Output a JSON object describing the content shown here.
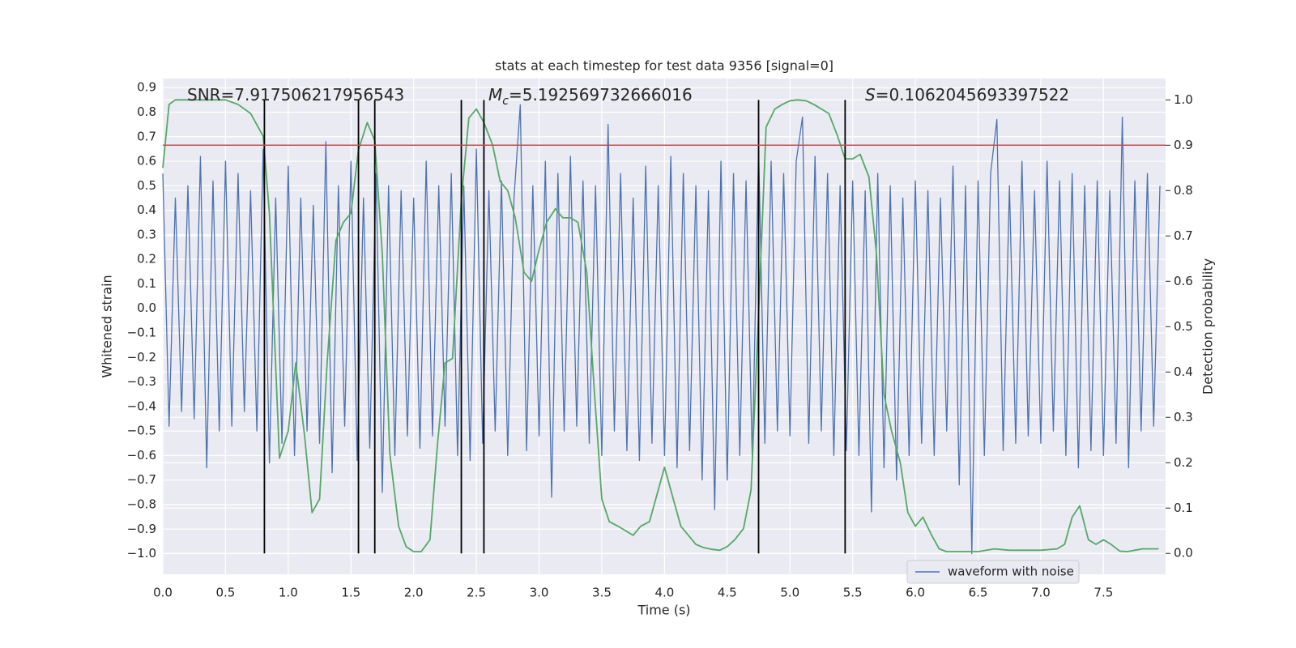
{
  "chart_data": {
    "type": "line",
    "title": "stats at each timestep for test data 9356 [signal=0]",
    "x_label": "Time (s)",
    "y_label": "Whitened strain",
    "y2_label": "Detection probability",
    "annotations": [
      [
        "SNR=7.917506217956543"
      ],
      [
        "M",
        "c",
        "=5.192569732666016"
      ],
      [
        "S",
        "=0.1062045693397522"
      ]
    ],
    "xlim": [
      0,
      7.995
    ],
    "ylim": [
      -1.084,
      0.937
    ],
    "y2lim": [
      -0.046,
      1.047
    ],
    "xticks": [
      {
        "value": 0,
        "label": "0.0"
      },
      0.5,
      {
        "value": 1,
        "label": "1.0"
      },
      1.5,
      {
        "value": 2,
        "label": "2.0"
      },
      2.5,
      {
        "value": 3,
        "label": "3.0"
      },
      3.5,
      {
        "value": 4,
        "label": "4.0"
      },
      4.5,
      {
        "value": 5,
        "label": "5.0"
      },
      5.5,
      {
        "value": 6,
        "label": "6.0"
      },
      6.5,
      {
        "value": 7,
        "label": "7.0"
      },
      7.5
    ],
    "yticks": [
      {
        "value": -1,
        "label": "−1.0"
      },
      {
        "value": -0.9,
        "label": "−0.9"
      },
      {
        "value": -0.8,
        "label": "−0.8"
      },
      {
        "value": -0.7,
        "label": "−0.7"
      },
      {
        "value": -0.6,
        "label": "−0.6"
      },
      {
        "value": -0.5,
        "label": "−0.5"
      },
      {
        "value": -0.4,
        "label": "−0.4"
      },
      {
        "value": -0.3,
        "label": "−0.3"
      },
      {
        "value": -0.2,
        "label": "−0.2"
      },
      {
        "value": -0.1,
        "label": "−0.1"
      },
      {
        "value": 0,
        "label": "0.0"
      },
      0.1,
      0.2,
      0.3,
      0.4,
      0.5,
      0.6,
      0.7,
      0.8,
      0.9
    ],
    "y2ticks": [
      {
        "value": 0,
        "label": "0.0"
      },
      0.1,
      0.2,
      0.3,
      0.4,
      0.5,
      0.6,
      0.7,
      0.8,
      0.9,
      {
        "value": 1,
        "label": "1.0"
      }
    ],
    "grid": true,
    "threshold": 0.9,
    "threshold_color": "#c44e52",
    "events": [
      0.81,
      1.56,
      1.69,
      2.38,
      2.56,
      4.75,
      5.44
    ],
    "events_color": "#000000",
    "series": [
      {
        "name": "waveform with noise",
        "color": "#4c72b0",
        "x": [
          0,
          0.05,
          0.1,
          0.15,
          0.2,
          0.25,
          0.3,
          0.35,
          0.4,
          0.45,
          0.5,
          0.55,
          0.6,
          0.65,
          0.7,
          0.75,
          0.8,
          0.85,
          0.9,
          0.95,
          1,
          1.05,
          1.1,
          1.15,
          1.2,
          1.25,
          1.3,
          1.35,
          1.4,
          1.45,
          1.5,
          1.55,
          1.6,
          1.65,
          1.7,
          1.75,
          1.8,
          1.85,
          1.9,
          1.95,
          2,
          2.05,
          2.1,
          2.15,
          2.2,
          2.25,
          2.3,
          2.35,
          2.4,
          2.45,
          2.5,
          2.55,
          2.6,
          2.65,
          2.7,
          2.75,
          2.8,
          2.85,
          2.9,
          2.95,
          3,
          3.05,
          3.1,
          3.15,
          3.2,
          3.25,
          3.3,
          3.35,
          3.4,
          3.45,
          3.5,
          3.55,
          3.6,
          3.65,
          3.7,
          3.75,
          3.8,
          3.85,
          3.9,
          3.95,
          4,
          4.05,
          4.1,
          4.15,
          4.2,
          4.25,
          4.3,
          4.35,
          4.4,
          4.45,
          4.5,
          4.55,
          4.6,
          4.65,
          4.7,
          4.75,
          4.8,
          4.85,
          4.9,
          4.95,
          5,
          5.05,
          5.1,
          5.15,
          5.2,
          5.25,
          5.3,
          5.35,
          5.4,
          5.45,
          5.5,
          5.55,
          5.6,
          5.65,
          5.7,
          5.75,
          5.8,
          5.85,
          5.9,
          5.95,
          6,
          6.05,
          6.1,
          6.15,
          6.2,
          6.25,
          6.3,
          6.35,
          6.4,
          6.45,
          6.5,
          6.55,
          6.6,
          6.65,
          6.7,
          6.75,
          6.8,
          6.85,
          6.9,
          6.95,
          7,
          7.05,
          7.1,
          7.15,
          7.2,
          7.25,
          7.3,
          7.35,
          7.4,
          7.45,
          7.5,
          7.55,
          7.6,
          7.65,
          7.7,
          7.75,
          7.8,
          7.85,
          7.9,
          7.95
        ],
        "values": [
          0.55,
          -0.48,
          0.45,
          -0.42,
          0.5,
          -0.45,
          0.62,
          -0.65,
          0.52,
          -0.5,
          0.6,
          -0.48,
          0.55,
          -0.42,
          0.48,
          -0.5,
          0.65,
          -0.63,
          0.45,
          -0.55,
          0.58,
          -0.6,
          0.45,
          -0.5,
          0.42,
          -0.55,
          0.68,
          -0.67,
          0.5,
          -0.48,
          0.6,
          -0.62,
          0.45,
          -0.57,
          0.55,
          -0.75,
          0.5,
          -0.6,
          0.48,
          -0.52,
          0.45,
          -0.57,
          0.6,
          -0.52,
          0.5,
          -0.48,
          0.55,
          -0.6,
          0.5,
          -0.62,
          0.65,
          -0.55,
          0.48,
          -0.5,
          0.52,
          -0.6,
          0.45,
          0.83,
          -0.58,
          0.5,
          -0.52,
          0.6,
          -0.77,
          0.55,
          -0.5,
          0.62,
          -0.48,
          0.52,
          -0.55,
          0.5,
          -0.6,
          0.75,
          -0.5,
          0.55,
          -0.58,
          0.45,
          -0.62,
          0.58,
          -0.55,
          0.5,
          -0.6,
          0.62,
          -0.65,
          0.55,
          -0.58,
          0.5,
          -0.7,
          0.48,
          -0.82,
          0.6,
          -0.7,
          0.55,
          -0.6,
          0.52,
          -0.62,
          0.65,
          -0.55,
          0.6,
          -0.5,
          0.55,
          -0.52,
          0.6,
          0.78,
          -0.55,
          0.62,
          -0.5,
          0.55,
          -0.6,
          0.5,
          -0.58,
          0.52,
          -0.6,
          0.48,
          -0.83,
          0.55,
          -0.65,
          0.5,
          -0.7,
          0.45,
          -0.6,
          0.52,
          -0.55,
          0.48,
          -0.6,
          0.45,
          -0.5,
          0.58,
          -0.72,
          0.5,
          -1.0,
          0.52,
          -0.6,
          0.55,
          0.77,
          -0.58,
          0.5,
          -0.55,
          0.6,
          -0.52,
          0.48,
          -0.55,
          0.6,
          -0.5,
          0.52,
          -0.6,
          0.55,
          -0.65,
          0.5,
          -0.58,
          0.52,
          -0.6,
          0.48,
          -0.55,
          0.78,
          -0.65,
          0.52,
          -0.5,
          0.55,
          -0.48,
          0.5
        ]
      },
      {
        "color": "#55a868",
        "axis": "y2",
        "x": [
          0,
          0.05,
          0.1,
          0.5,
          0.6,
          0.7,
          0.8,
          0.85,
          0.93,
          1.0,
          1.06,
          1.13,
          1.19,
          1.25,
          1.31,
          1.38,
          1.44,
          1.5,
          1.56,
          1.63,
          1.69,
          1.75,
          1.81,
          1.88,
          1.94,
          2.0,
          2.06,
          2.13,
          2.19,
          2.25,
          2.31,
          2.38,
          2.44,
          2.5,
          2.56,
          2.63,
          2.69,
          2.75,
          2.81,
          2.88,
          2.94,
          3.0,
          3.06,
          3.13,
          3.19,
          3.25,
          3.31,
          3.38,
          3.44,
          3.5,
          3.56,
          3.63,
          3.69,
          3.75,
          3.81,
          3.88,
          3.94,
          4.0,
          4.06,
          4.13,
          4.19,
          4.25,
          4.31,
          4.38,
          4.44,
          4.5,
          4.56,
          4.63,
          4.69,
          4.75,
          4.81,
          4.88,
          4.94,
          5.0,
          5.06,
          5.13,
          5.19,
          5.25,
          5.31,
          5.38,
          5.44,
          5.5,
          5.56,
          5.63,
          5.69,
          5.75,
          5.81,
          5.88,
          5.94,
          6.0,
          6.06,
          6.13,
          6.19,
          6.25,
          6.5,
          6.63,
          6.75,
          7.0,
          7.13,
          7.19,
          7.25,
          7.31,
          7.38,
          7.44,
          7.5,
          7.56,
          7.63,
          7.69,
          7.75,
          7.81,
          7.94
        ],
        "values": [
          0.85,
          0.99,
          1.0,
          1.0,
          0.99,
          0.97,
          0.92,
          0.75,
          0.21,
          0.27,
          0.42,
          0.26,
          0.09,
          0.12,
          0.42,
          0.69,
          0.73,
          0.75,
          0.89,
          0.95,
          0.91,
          0.66,
          0.22,
          0.06,
          0.015,
          0.004,
          0.004,
          0.03,
          0.24,
          0.42,
          0.43,
          0.78,
          0.96,
          0.98,
          0.95,
          0.9,
          0.82,
          0.8,
          0.74,
          0.62,
          0.6,
          0.67,
          0.73,
          0.76,
          0.74,
          0.74,
          0.73,
          0.62,
          0.36,
          0.12,
          0.07,
          0.06,
          0.05,
          0.04,
          0.06,
          0.07,
          0.13,
          0.19,
          0.13,
          0.06,
          0.04,
          0.02,
          0.013,
          0.009,
          0.007,
          0.015,
          0.03,
          0.055,
          0.14,
          0.53,
          0.94,
          0.98,
          0.99,
          0.998,
          1.0,
          0.998,
          0.99,
          0.98,
          0.97,
          0.92,
          0.87,
          0.87,
          0.88,
          0.83,
          0.66,
          0.35,
          0.27,
          0.2,
          0.09,
          0.06,
          0.08,
          0.04,
          0.01,
          0.004,
          0.004,
          0.01,
          0.007,
          0.007,
          0.01,
          0.02,
          0.08,
          0.105,
          0.03,
          0.02,
          0.03,
          0.02,
          0.005,
          0.004,
          0.007,
          0.01,
          0.01
        ]
      }
    ]
  }
}
